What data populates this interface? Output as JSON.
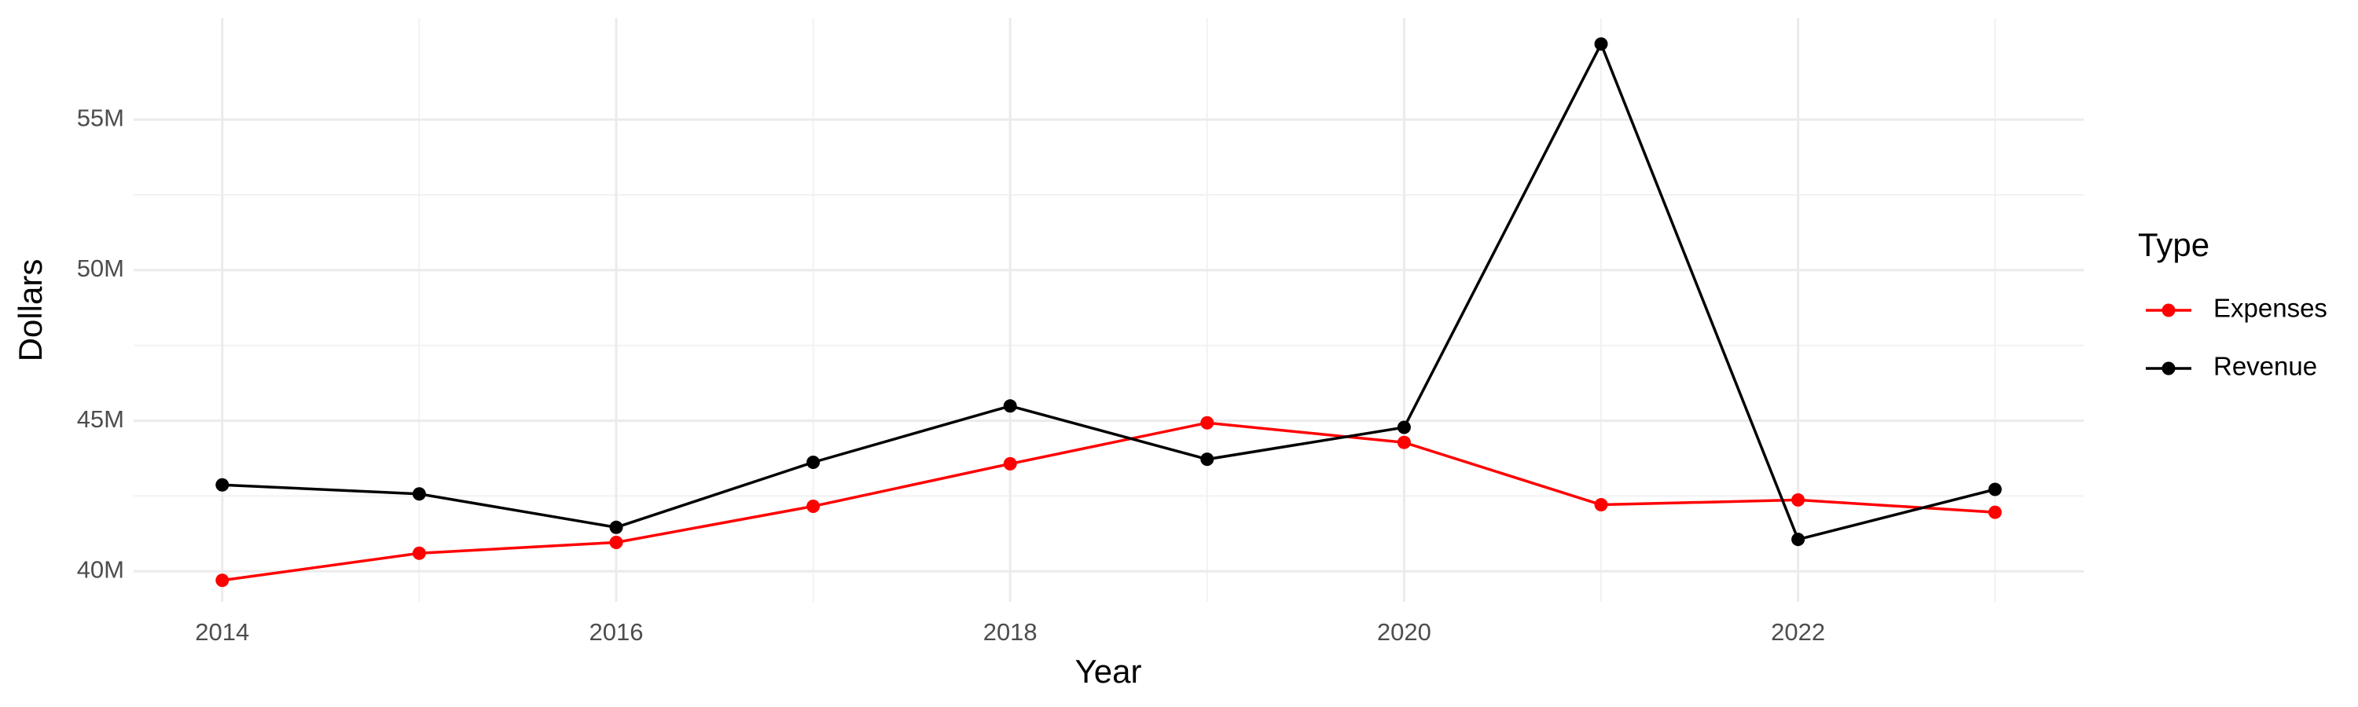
{
  "chart_data": {
    "type": "line",
    "x_label": "Year",
    "y_label": "Dollars",
    "legend_title": "Type",
    "legend_position": "right",
    "grid": true,
    "x": [
      2014,
      2015,
      2016,
      2017,
      2018,
      2019,
      2020,
      2021,
      2022,
      2023
    ],
    "series": [
      {
        "name": "Expenses",
        "color": "#ff0000",
        "values": [
          39700000,
          40600000,
          40960000,
          42160000,
          43570000,
          44930000,
          44280000,
          42210000,
          42370000,
          41960000
        ]
      },
      {
        "name": "Revenue",
        "color": "#000000",
        "values": [
          42870000,
          42570000,
          41460000,
          43620000,
          45490000,
          43720000,
          44780000,
          57510000,
          41060000,
          42720000
        ]
      }
    ],
    "xlim": [
      2013.55,
      2023.45
    ],
    "xticks": [
      2014,
      2016,
      2018,
      2020,
      2022
    ],
    "ylim": [
      38990000,
      58370000
    ],
    "yticks": [
      {
        "value": 40000000,
        "label": "40M"
      },
      {
        "value": 45000000,
        "label": "45M"
      },
      {
        "value": 50000000,
        "label": "50M"
      },
      {
        "value": 55000000,
        "label": "55M"
      }
    ]
  }
}
